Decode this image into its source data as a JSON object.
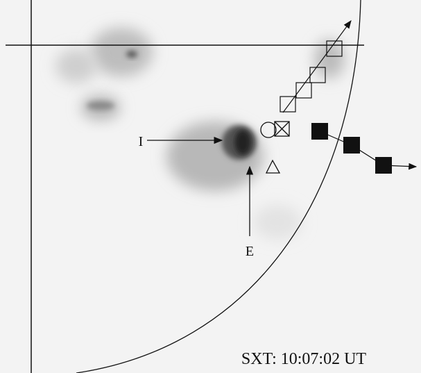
{
  "labels": {
    "i": "I",
    "e": "E"
  },
  "caption": "SXT: 10:07:02 UT"
}
